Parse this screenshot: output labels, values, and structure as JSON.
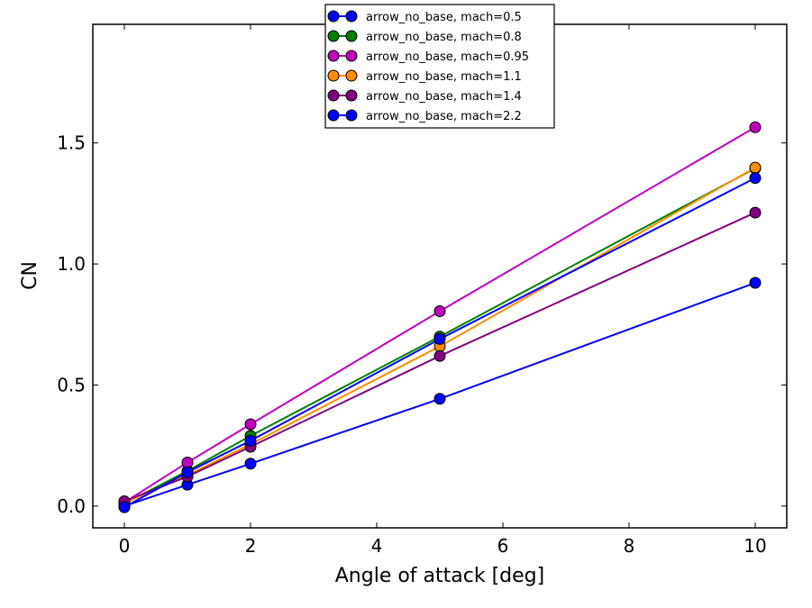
{
  "chart_data": {
    "type": "line",
    "xlabel": "Angle of attack [deg]",
    "ylabel": "CN",
    "xlim": [
      -0.5,
      10.5
    ],
    "ylim": [
      -0.09,
      1.99
    ],
    "xticks": [
      0,
      2,
      4,
      6,
      8,
      10
    ],
    "xtick_labels": [
      "0",
      "2",
      "4",
      "6",
      "8",
      "10"
    ],
    "yticks": [
      0.0,
      0.5,
      1.0,
      1.5
    ],
    "ytick_labels": [
      "0.0",
      "0.5",
      "1.0",
      "1.5"
    ],
    "grid": false,
    "legend_position": "top-center",
    "x": [
      0,
      1,
      2,
      5,
      10
    ],
    "series": [
      {
        "name": "arrow_no_base, mach=0.5",
        "color": "#0000ff",
        "values": [
          0.0,
          0.088,
          0.175,
          0.443,
          0.922
        ]
      },
      {
        "name": "arrow_no_base, mach=0.8",
        "color": "#008000",
        "values": [
          0.01,
          0.145,
          0.29,
          0.7,
          1.395
        ]
      },
      {
        "name": "arrow_no_base, mach=0.95",
        "color": "#bf00bf",
        "values": [
          0.015,
          0.18,
          0.338,
          0.805,
          1.565
        ]
      },
      {
        "name": "arrow_no_base, mach=1.1",
        "color": "#ff8c00",
        "values": [
          0.012,
          0.128,
          0.255,
          0.66,
          1.398
        ]
      },
      {
        "name": "arrow_no_base, mach=1.4",
        "color": "#800080",
        "values": [
          0.02,
          0.122,
          0.245,
          0.62,
          1.212
        ]
      },
      {
        "name": "arrow_no_base, mach=2.2",
        "color": "#0000ff",
        "values": [
          -0.005,
          0.14,
          0.27,
          0.69,
          1.355
        ]
      }
    ]
  }
}
